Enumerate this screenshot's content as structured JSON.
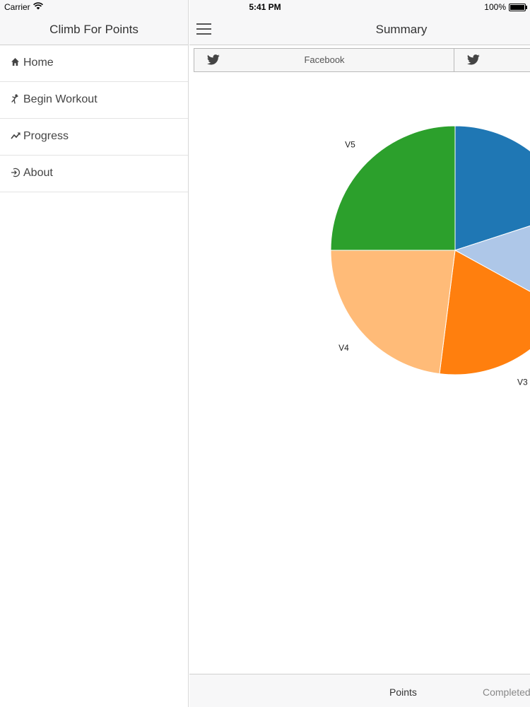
{
  "status_bar": {
    "carrier": "Carrier",
    "time": "5:41 PM",
    "battery": "100%"
  },
  "sidebar": {
    "title": "Climb For Points",
    "items": [
      {
        "label": "Home",
        "icon": "home-icon"
      },
      {
        "label": "Begin Workout",
        "icon": "climber-icon"
      },
      {
        "label": "Progress",
        "icon": "trend-icon"
      },
      {
        "label": "About",
        "icon": "sign-in-icon"
      }
    ]
  },
  "main": {
    "title": "Summary",
    "share": [
      {
        "label": "Facebook",
        "icon": "twitter-bird-icon"
      },
      {
        "label": "",
        "icon": "twitter-bird-icon"
      }
    ],
    "tabs": [
      {
        "label": "Points",
        "active": true
      },
      {
        "label": "Completed",
        "active": false
      }
    ]
  },
  "colors": {
    "V5": "#2ca02c",
    "V4": "#ffbb78",
    "V3": "#ff7f0e",
    "slice_blue": "#1f77b4",
    "slice_light_blue": "#aec7e8",
    "bar_bg": "#f7f7f8"
  },
  "chart_data": {
    "type": "pie",
    "slices": [
      {
        "label": "",
        "value": 20,
        "color": "#1f77b4"
      },
      {
        "label": "",
        "value": 13,
        "color": "#aec7e8"
      },
      {
        "label": "V3",
        "value": 19,
        "color": "#ff7f0e"
      },
      {
        "label": "V4",
        "value": 23,
        "color": "#ffbb78"
      },
      {
        "label": "V5",
        "value": 25,
        "color": "#2ca02c"
      }
    ]
  }
}
